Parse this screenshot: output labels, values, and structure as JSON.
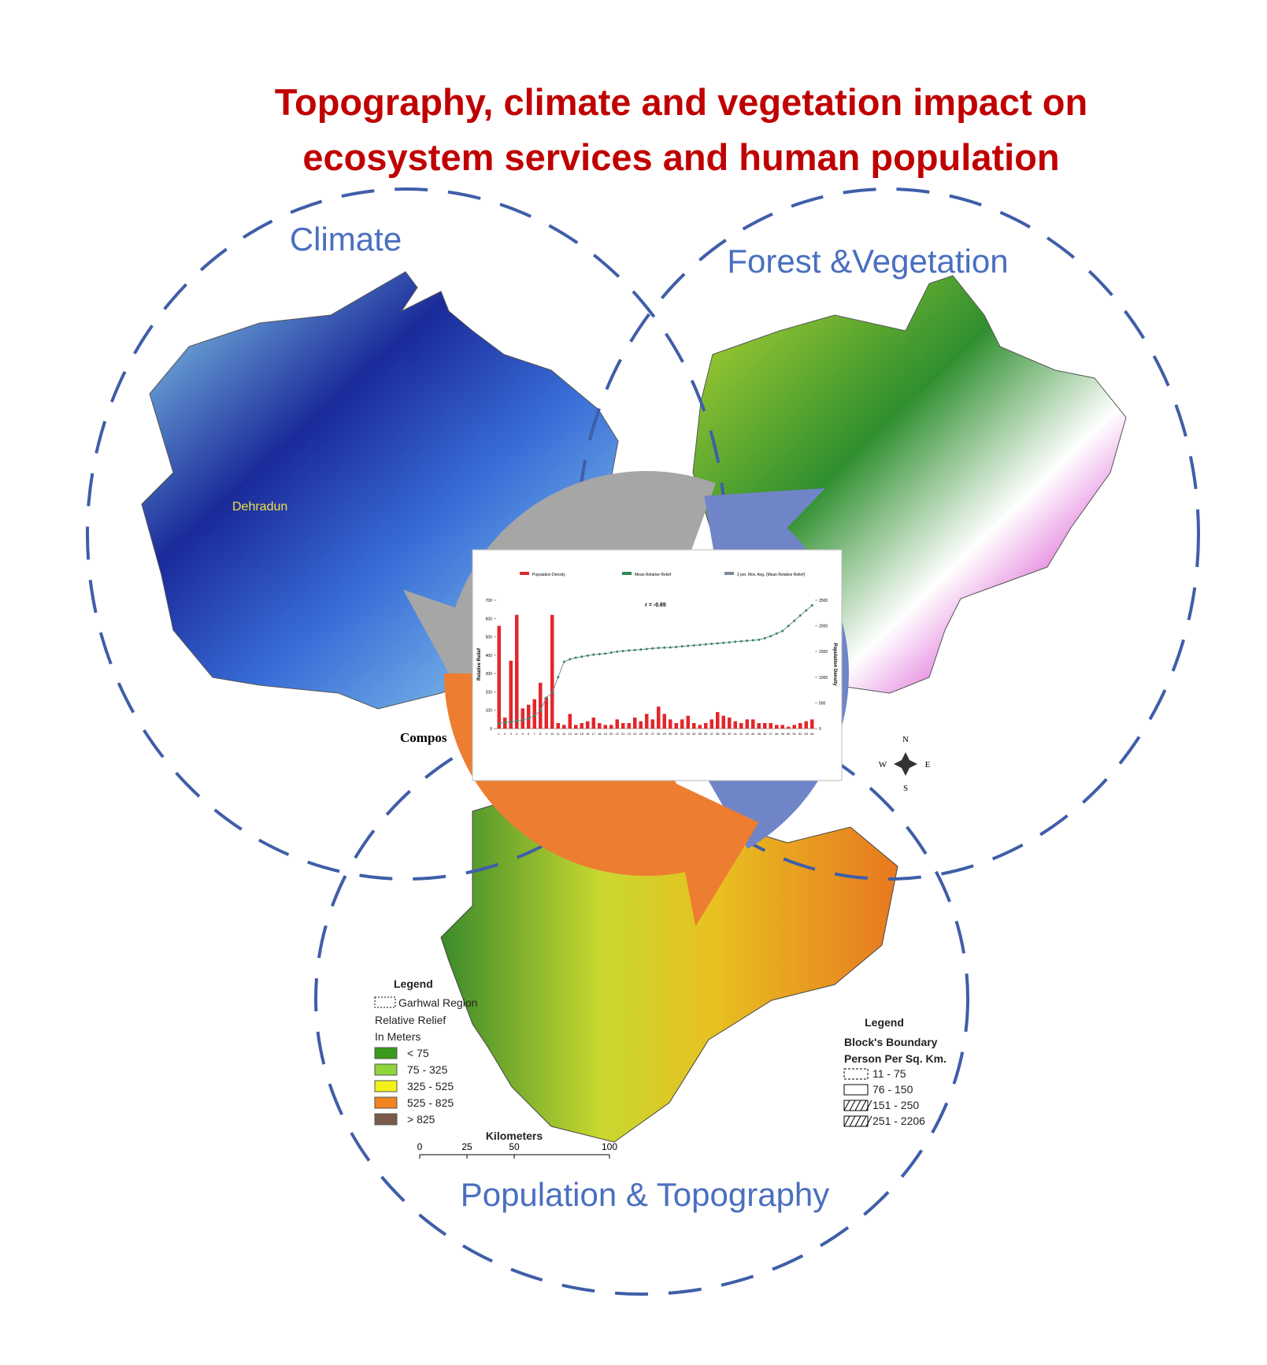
{
  "header": {
    "title_line1": "Topography, climate and vegetation impact on",
    "title_line2": "ecosystem services and human population"
  },
  "circles": {
    "climate": "Climate",
    "forest": "Forest &Vegetation",
    "population": "Population & Topography"
  },
  "climate_map": {
    "place": "Dehradun",
    "caption_fragment": "Compos"
  },
  "relief_legend": {
    "title": "Legend",
    "region": "Garhwal Region",
    "subtitle1": "Relative Relief",
    "subtitle2": "In Meters",
    "items": [
      {
        "label": "< 75",
        "color": "#3a9a1a"
      },
      {
        "label": "75 - 325",
        "color": "#8fd43a"
      },
      {
        "label": "325 - 525",
        "color": "#f2f21a"
      },
      {
        "label": "525 - 825",
        "color": "#f0841e"
      },
      {
        "label": "> 825",
        "color": "#7a5a4a"
      }
    ]
  },
  "scale_bar": {
    "title": "Kilometers",
    "ticks": [
      "0",
      "25",
      "50",
      "100"
    ]
  },
  "density_legend": {
    "title": "Legend",
    "subtitle1": "Block's Boundary",
    "subtitle2": "Person Per Sq. Km.",
    "items": [
      "11 - 75",
      "76 - 150",
      "151 - 250",
      "251 - 2206"
    ]
  },
  "compass": {
    "n": "N",
    "e": "E",
    "s": "S",
    "w": "W"
  },
  "inset_chart": {
    "type": "bar",
    "annotation": "r = -0.65",
    "ylabel": "Relative Relief",
    "y2label": "Population Density",
    "categories": [
      1,
      2,
      3,
      4,
      5,
      6,
      7,
      8,
      9,
      10,
      11,
      12,
      13,
      14,
      15,
      16,
      17,
      18,
      19,
      20,
      21,
      22,
      23,
      24,
      25,
      26,
      27,
      28,
      29,
      30,
      31,
      32,
      33,
      34,
      35,
      36,
      37,
      38,
      39,
      40,
      41,
      42,
      43,
      44,
      45,
      46,
      47,
      48,
      49,
      50,
      51,
      52,
      53,
      54
    ],
    "ylim": [
      0,
      700
    ],
    "yticks": [
      0,
      100,
      200,
      300,
      400,
      500,
      600,
      700
    ],
    "y2lim": [
      0,
      2500
    ],
    "y2ticks": [
      0,
      500,
      1000,
      1500,
      2000,
      2500
    ],
    "series": [
      {
        "name": "Population Density",
        "color": "#e3262b",
        "type": "bar",
        "values": [
          560,
          60,
          370,
          620,
          110,
          130,
          160,
          250,
          170,
          620,
          30,
          20,
          80,
          20,
          30,
          40,
          60,
          30,
          20,
          20,
          50,
          30,
          30,
          60,
          40,
          80,
          50,
          120,
          80,
          50,
          30,
          50,
          70,
          30,
          20,
          30,
          50,
          90,
          70,
          60,
          40,
          30,
          50,
          50,
          30,
          30,
          30,
          20,
          20,
          10,
          20,
          30,
          40,
          50
        ]
      },
      {
        "name": "Mean Relative Relief",
        "color": "#2e8b57",
        "type": "scatter",
        "axis": "y2",
        "values": [
          100,
          120,
          130,
          150,
          170,
          200,
          250,
          350,
          600,
          700,
          1000,
          1300,
          1350,
          1380,
          1400,
          1420,
          1440,
          1450,
          1460,
          1480,
          1500,
          1510,
          1520,
          1530,
          1540,
          1550,
          1560,
          1570,
          1575,
          1580,
          1590,
          1600,
          1610,
          1620,
          1630,
          1640,
          1650,
          1660,
          1670,
          1680,
          1690,
          1700,
          1710,
          1720,
          1730,
          1760,
          1800,
          1850,
          1900,
          2000,
          2100,
          2200,
          2300,
          2400
        ]
      },
      {
        "name": "2 per. Mov. Avg. (Mean Relative Relief)",
        "color": "#7a8a9a",
        "type": "line"
      }
    ]
  }
}
